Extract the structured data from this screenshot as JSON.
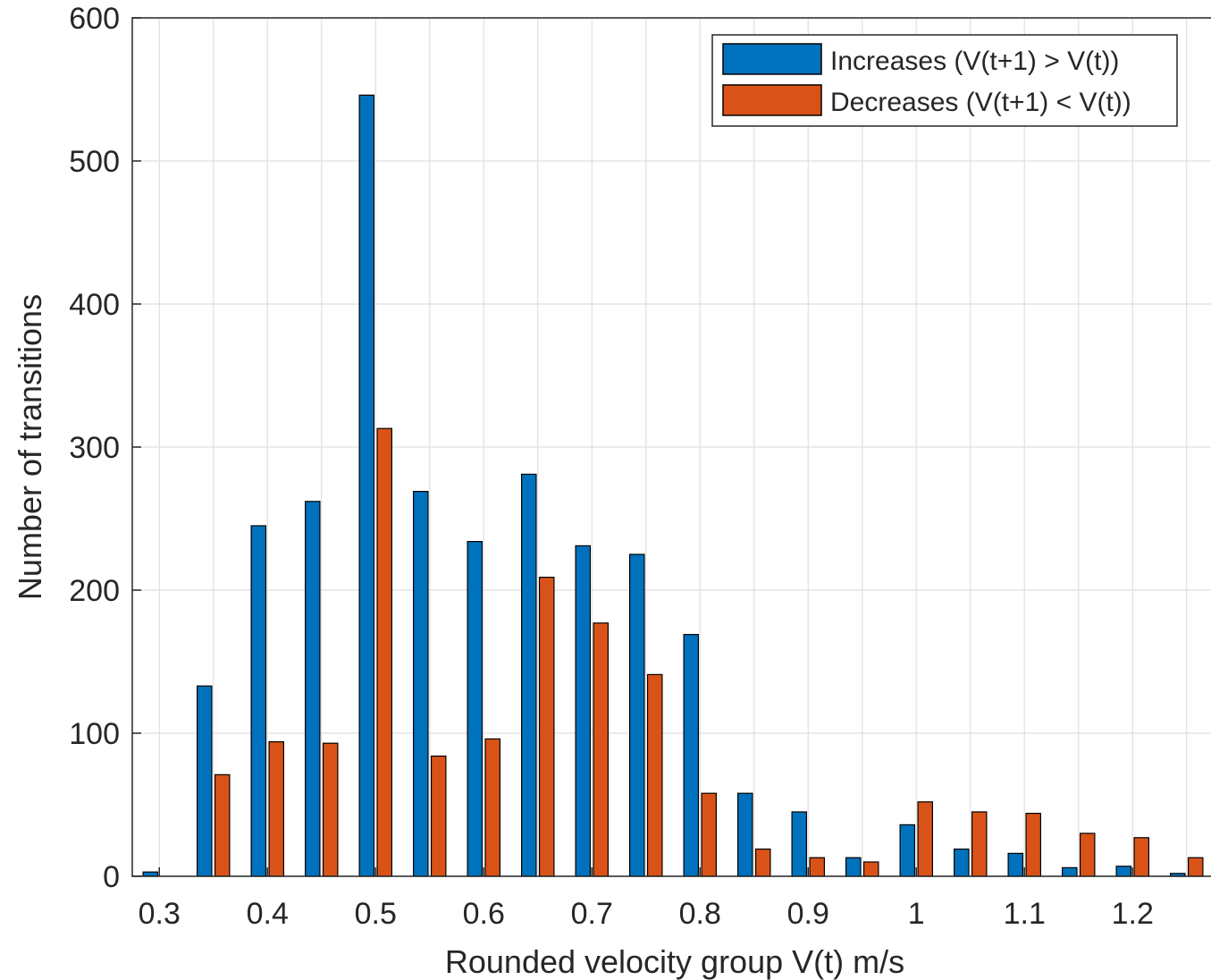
{
  "chart_data": {
    "type": "bar",
    "xlabel": "Rounded velocity group V(t) m/s",
    "ylabel": "Number of transitions",
    "ylim": [
      0,
      600
    ],
    "xlim": [
      0.275,
      1.275
    ],
    "xticks": [
      "0.3",
      "0.4",
      "0.5",
      "0.6",
      "0.7",
      "0.8",
      "0.9",
      "1",
      "1.1",
      "1.2"
    ],
    "yticks": [
      "0",
      "100",
      "200",
      "300",
      "400",
      "500",
      "600"
    ],
    "grid": true,
    "legend_position": "top-right",
    "categories": [
      0.3,
      0.35,
      0.4,
      0.45,
      0.5,
      0.55,
      0.6,
      0.65,
      0.7,
      0.75,
      0.8,
      0.85,
      0.9,
      0.95,
      1.0,
      1.05,
      1.1,
      1.15,
      1.2,
      1.25
    ],
    "series": [
      {
        "name": "Increases (V(t+1) > V(t))",
        "color": "#0072BD",
        "values": [
          3,
          133,
          245,
          262,
          546,
          269,
          234,
          281,
          231,
          225,
          169,
          58,
          45,
          13,
          36,
          19,
          16,
          6,
          7,
          2
        ]
      },
      {
        "name": "Decreases (V(t+1) < V(t))",
        "color": "#D95319",
        "values": [
          0,
          71,
          94,
          93,
          313,
          84,
          96,
          209,
          177,
          141,
          58,
          19,
          13,
          10,
          52,
          45,
          44,
          30,
          27,
          13
        ]
      }
    ]
  }
}
